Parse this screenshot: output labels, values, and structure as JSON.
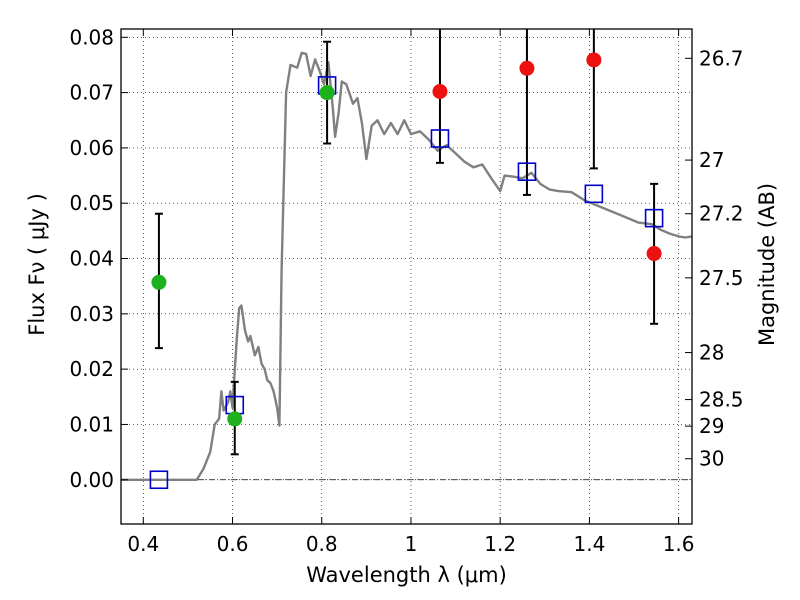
{
  "chart_data": {
    "type": "scatter",
    "xlabel": "Wavelength  λ (μm)",
    "ylabel": "Flux  Fν  ( μJy )",
    "y2label": "Magnitude (AB)",
    "xlim": [
      0.35,
      1.63
    ],
    "ylim": [
      -0.008,
      0.0815
    ],
    "grid": true,
    "x_ticks": [
      0.4,
      0.6,
      0.8,
      1.0,
      1.2,
      1.4,
      1.6
    ],
    "x_tick_labels": [
      "0.4",
      "0.6",
      "0.8",
      "1",
      "1.2",
      "1.4",
      "1.6"
    ],
    "y_ticks": [
      0.0,
      0.01,
      0.02,
      0.03,
      0.04,
      0.05,
      0.06,
      0.07,
      0.08
    ],
    "y_tick_labels": [
      "0.00",
      "0.01",
      "0.02",
      "0.03",
      "0.04",
      "0.05",
      "0.06",
      "0.07",
      "0.08"
    ],
    "mag_ticks": [
      {
        "label": "26.7",
        "flux": 0.0762
      },
      {
        "label": "27",
        "flux": 0.0578
      },
      {
        "label": "27.2",
        "flux": 0.0481
      },
      {
        "label": "27.5",
        "flux": 0.0365
      },
      {
        "label": "28",
        "flux": 0.023
      },
      {
        "label": "28.5",
        "flux": 0.0145
      },
      {
        "label": "29",
        "flux": 0.0097
      },
      {
        "label": "30",
        "flux": 0.0038
      }
    ],
    "zero_line": 0.0,
    "colors": {
      "model": "#808080",
      "detection": "#1db11d",
      "upper": "#ee1111",
      "synthetic": "#0000cc",
      "errorbar": "#000000"
    },
    "series": [
      {
        "type": "line",
        "points": [
          [
            0.35,
            0.0
          ],
          [
            0.52,
            0.0
          ],
          [
            0.535,
            0.002
          ],
          [
            0.55,
            0.005
          ],
          [
            0.56,
            0.01
          ],
          [
            0.57,
            0.011
          ],
          [
            0.575,
            0.016
          ],
          [
            0.58,
            0.0125
          ],
          [
            0.59,
            0.014
          ],
          [
            0.595,
            0.016
          ],
          [
            0.6,
            0.013
          ],
          [
            0.605,
            0.02
          ],
          [
            0.61,
            0.026
          ],
          [
            0.615,
            0.031
          ],
          [
            0.62,
            0.0315
          ],
          [
            0.628,
            0.027
          ],
          [
            0.635,
            0.025
          ],
          [
            0.64,
            0.026
          ],
          [
            0.65,
            0.0225
          ],
          [
            0.658,
            0.024
          ],
          [
            0.665,
            0.021
          ],
          [
            0.672,
            0.02
          ],
          [
            0.678,
            0.018
          ],
          [
            0.685,
            0.0175
          ],
          [
            0.692,
            0.016
          ],
          [
            0.7,
            0.013
          ],
          [
            0.705,
            0.0098
          ],
          [
            0.71,
            0.038
          ],
          [
            0.72,
            0.07
          ],
          [
            0.73,
            0.075
          ],
          [
            0.745,
            0.0745
          ],
          [
            0.755,
            0.0772
          ],
          [
            0.765,
            0.077
          ],
          [
            0.775,
            0.073
          ],
          [
            0.785,
            0.076
          ],
          [
            0.795,
            0.074
          ],
          [
            0.805,
            0.0715
          ],
          [
            0.815,
            0.0755
          ],
          [
            0.825,
            0.067
          ],
          [
            0.83,
            0.062
          ],
          [
            0.838,
            0.0665
          ],
          [
            0.845,
            0.072
          ],
          [
            0.855,
            0.0715
          ],
          [
            0.87,
            0.068
          ],
          [
            0.88,
            0.069
          ],
          [
            0.89,
            0.0645
          ],
          [
            0.9,
            0.058
          ],
          [
            0.912,
            0.064
          ],
          [
            0.925,
            0.065
          ],
          [
            0.94,
            0.0625
          ],
          [
            0.955,
            0.0645
          ],
          [
            0.97,
            0.0625
          ],
          [
            0.985,
            0.065
          ],
          [
            1.0,
            0.0625
          ],
          [
            1.02,
            0.063
          ],
          [
            1.04,
            0.0615
          ],
          [
            1.06,
            0.0595
          ],
          [
            1.08,
            0.0605
          ],
          [
            1.1,
            0.059
          ],
          [
            1.12,
            0.0575
          ],
          [
            1.14,
            0.0565
          ],
          [
            1.16,
            0.057
          ],
          [
            1.18,
            0.0545
          ],
          [
            1.2,
            0.0522
          ],
          [
            1.21,
            0.055
          ],
          [
            1.23,
            0.0548
          ],
          [
            1.25,
            0.0545
          ],
          [
            1.27,
            0.0555
          ],
          [
            1.29,
            0.0535
          ],
          [
            1.31,
            0.0525
          ],
          [
            1.33,
            0.0522
          ],
          [
            1.36,
            0.052
          ],
          [
            1.39,
            0.0505
          ],
          [
            1.42,
            0.0495
          ],
          [
            1.45,
            0.0485
          ],
          [
            1.48,
            0.0475
          ],
          [
            1.51,
            0.0465
          ],
          [
            1.54,
            0.0462
          ],
          [
            1.56,
            0.0452
          ],
          [
            1.58,
            0.0445
          ],
          [
            1.6,
            0.044
          ],
          [
            1.615,
            0.0438
          ],
          [
            1.63,
            0.044
          ]
        ]
      },
      {
        "type": "scatter",
        "marker": "circle",
        "points": [
          {
            "x": 0.435,
            "y": 0.0357,
            "yerr_low": 0.0238,
            "yerr_high": 0.0481
          },
          {
            "x": 0.605,
            "y": 0.011,
            "yerr_low": 0.0046,
            "yerr_high": 0.0177
          },
          {
            "x": 0.812,
            "y": 0.07,
            "yerr_low": 0.0608,
            "yerr_high": 0.0792
          }
        ]
      },
      {
        "type": "scatter",
        "marker": "circle",
        "points": [
          {
            "x": 1.065,
            "y": 0.0702,
            "yerr_low": 0.0573,
            "yerr_high": 0.0815
          },
          {
            "x": 1.26,
            "y": 0.0744,
            "yerr_low": 0.0515,
            "yerr_high": 0.0815
          },
          {
            "x": 1.41,
            "y": 0.0759,
            "yerr_low": 0.0563,
            "yerr_high": 0.0815
          },
          {
            "x": 1.545,
            "y": 0.0409,
            "yerr_low": 0.0282,
            "yerr_high": 0.0535
          }
        ]
      },
      {
        "type": "scatter",
        "marker": "square",
        "points": [
          {
            "x": 0.435,
            "y": 0.0
          },
          {
            "x": 0.605,
            "y": 0.0135
          },
          {
            "x": 0.812,
            "y": 0.0713
          },
          {
            "x": 1.065,
            "y": 0.0617
          },
          {
            "x": 1.26,
            "y": 0.0557
          },
          {
            "x": 1.41,
            "y": 0.0517
          },
          {
            "x": 1.545,
            "y": 0.0473
          }
        ]
      }
    ]
  }
}
